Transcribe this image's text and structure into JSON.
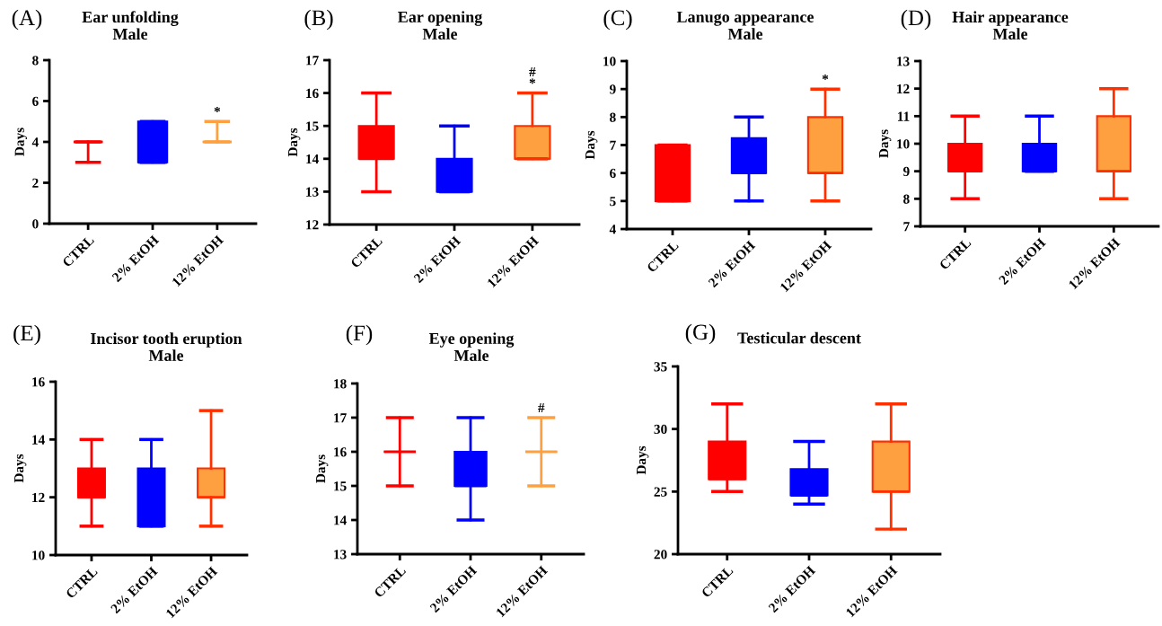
{
  "chart_data": [
    {
      "type": "box",
      "title": "Ear unfolding\nMale",
      "ylabel": "Days",
      "categories": [
        "CTRL",
        "2% EtOH",
        "12% EtOH"
      ],
      "colors": [
        "#ff0000",
        "#0000ff",
        "#ffa040"
      ],
      "ylim": [
        0,
        8
      ],
      "yticks": [
        0,
        2,
        4,
        6,
        8
      ],
      "grid": false,
      "legend": false,
      "boxes": [
        {
          "low": 3,
          "q1": 4,
          "median": 4,
          "q3": 4,
          "high": 4
        },
        {
          "low": 3,
          "q1": 3,
          "median": 3,
          "q3": 5,
          "high": 5
        },
        {
          "low": 4,
          "q1": 4,
          "median": 4,
          "q3": 4,
          "high": 5
        }
      ],
      "annotations": [
        "(A)",
        "*"
      ]
    },
    {
      "type": "box",
      "title": "Ear opening\nMale",
      "ylabel": "Days",
      "categories": [
        "CTRL",
        "2% EtOH",
        "12% EtOH"
      ],
      "colors": [
        "#ff0000",
        "#0000ff",
        "#ffa040"
      ],
      "ylim": [
        12,
        17
      ],
      "yticks": [
        12,
        13,
        14,
        15,
        16,
        17
      ],
      "grid": false,
      "legend": false,
      "boxes": [
        {
          "low": 13,
          "q1": 14,
          "median": 14,
          "q3": 15,
          "high": 16
        },
        {
          "low": 13,
          "q1": 13,
          "median": 13,
          "q3": 14,
          "high": 15
        },
        {
          "low": 14,
          "q1": 14,
          "median": 14,
          "q3": 15,
          "high": 16
        }
      ],
      "annotations": [
        "(B)",
        "*",
        "#"
      ]
    },
    {
      "type": "box",
      "title": "Lanugo appearance\nMale",
      "ylabel": "Days",
      "categories": [
        "CTRL",
        "2% EtOH",
        "12% EtOH"
      ],
      "colors": [
        "#ff0000",
        "#0000ff",
        "#ffa040"
      ],
      "ylim": [
        4,
        10
      ],
      "yticks": [
        4,
        5,
        6,
        7,
        8,
        9,
        10
      ],
      "grid": false,
      "legend": false,
      "boxes": [
        {
          "low": 5,
          "q1": 5,
          "median": 5,
          "q3": 7,
          "high": 7
        },
        {
          "low": 5,
          "q1": 6,
          "median": 6,
          "q3": 7.25,
          "high": 8
        },
        {
          "low": 5,
          "q1": 6,
          "median": 6,
          "q3": 8,
          "high": 9
        }
      ],
      "annotations": [
        "(C)",
        "*"
      ]
    },
    {
      "type": "box",
      "title": "Hair appearance\nMale",
      "ylabel": "Days",
      "categories": [
        "CTRL",
        "2% EtOH",
        "12% EtOH"
      ],
      "colors": [
        "#ff0000",
        "#0000ff",
        "#ffa040"
      ],
      "ylim": [
        7,
        13
      ],
      "yticks": [
        7,
        8,
        9,
        10,
        11,
        12,
        13
      ],
      "grid": false,
      "legend": false,
      "boxes": [
        {
          "low": 8,
          "q1": 9,
          "median": 9,
          "q3": 10,
          "high": 11
        },
        {
          "low": 9,
          "q1": 9,
          "median": 9,
          "q3": 10,
          "high": 11
        },
        {
          "low": 8,
          "q1": 9,
          "median": 9,
          "q3": 11,
          "high": 12
        }
      ],
      "annotations": [
        "(D)"
      ]
    },
    {
      "type": "box",
      "title": "Incisor tooth eruption\nMale",
      "ylabel": "Days",
      "categories": [
        "CTRL",
        "2% EtOH",
        "12% EtOH"
      ],
      "colors": [
        "#ff0000",
        "#0000ff",
        "#ffa040"
      ],
      "ylim": [
        10,
        16
      ],
      "yticks": [
        10,
        12,
        14,
        16
      ],
      "grid": false,
      "legend": false,
      "boxes": [
        {
          "low": 11,
          "q1": 12,
          "median": 12,
          "q3": 13,
          "high": 14
        },
        {
          "low": 11,
          "q1": 11,
          "median": 11,
          "q3": 13,
          "high": 14
        },
        {
          "low": 11,
          "q1": 12,
          "median": 12,
          "q3": 13,
          "high": 15
        }
      ],
      "annotations": [
        "(E)"
      ]
    },
    {
      "type": "box",
      "title": "Eye opening\nMale",
      "ylabel": "Days",
      "categories": [
        "CTRL",
        "2% EtOH",
        "12% EtOH"
      ],
      "colors": [
        "#ff0000",
        "#0000ff",
        "#ffa040"
      ],
      "ylim": [
        13,
        18
      ],
      "yticks": [
        13,
        14,
        15,
        16,
        17,
        18
      ],
      "grid": false,
      "legend": false,
      "boxes": [
        {
          "low": 15,
          "q1": 16,
          "median": 16,
          "q3": 16,
          "high": 17
        },
        {
          "low": 14,
          "q1": 15,
          "median": 15,
          "q3": 16,
          "high": 17
        },
        {
          "low": 15,
          "q1": 16,
          "median": 16,
          "q3": 16,
          "high": 17
        }
      ],
      "annotations": [
        "(F)",
        "#"
      ]
    },
    {
      "type": "box",
      "title": "Testicular descent",
      "ylabel": "Days",
      "categories": [
        "CTRL",
        "2% EtOH",
        "12% EtOH"
      ],
      "colors": [
        "#ff0000",
        "#0000ff",
        "#ffa040"
      ],
      "ylim": [
        20,
        35
      ],
      "yticks": [
        20,
        25,
        30,
        35
      ],
      "grid": false,
      "legend": false,
      "boxes": [
        {
          "low": 25,
          "q1": 26,
          "median": 26,
          "q3": 29,
          "high": 32
        },
        {
          "low": 24,
          "q1": 24.7,
          "median": 24.7,
          "q3": 26.8,
          "high": 29
        },
        {
          "low": 22,
          "q1": 25,
          "median": 25,
          "q3": 29,
          "high": 32
        }
      ],
      "annotations": [
        "(G)"
      ]
    }
  ]
}
